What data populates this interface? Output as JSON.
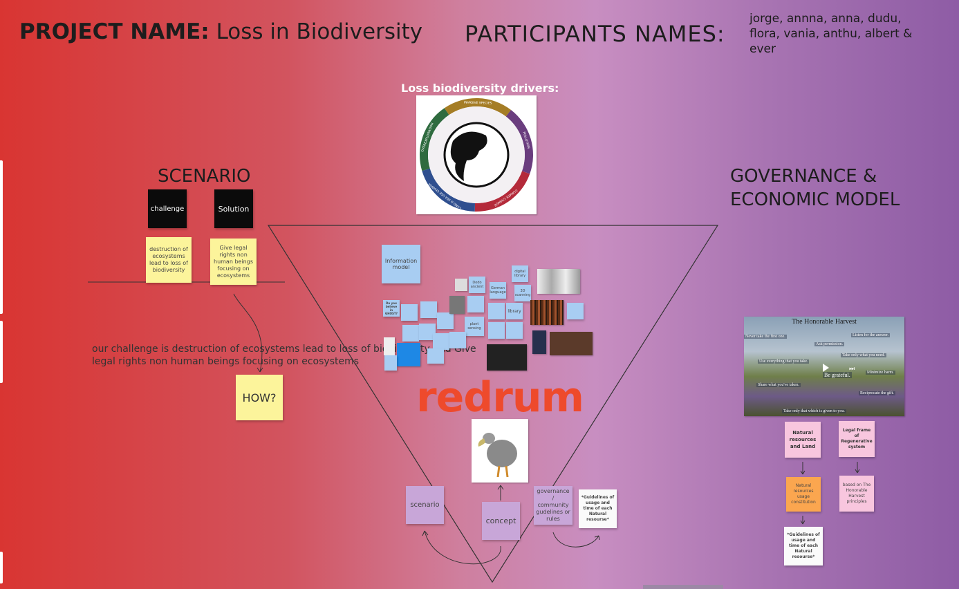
{
  "header": {
    "project_label": "PROJECT NAME:",
    "project_name": "Loss in Biodiversity",
    "participants_label": "PARTICIPANTS NAMES:",
    "participants": "jorge, annna, anna, dudu, flora, vania, anthu, albert & ever"
  },
  "drivers": {
    "title": "Loss biodiversity drivers:",
    "wheel_labels": [
      "INVASIVE SPECIES",
      "POLLUTION",
      "CLIMATE CHANGE",
      "LAND & SEA USE CHANGE",
      "OVEREXPLOITATION"
    ],
    "wheel_colors": [
      "#a57d25",
      "#6a3d7e",
      "#b42a3a",
      "#2f4f8f",
      "#2f6b3f"
    ]
  },
  "scenario": {
    "title": "SCENARIO",
    "challenge": "challenge",
    "solution": "Solution",
    "challenge_note": "destruction of ecosystems lead to loss of biodiversity",
    "solution_note": "Give legal rights non human beings focusing on ecosystems",
    "statement": "our challenge is destruction of ecosystems lead to loss of biodiversity and Give legal rights non human beings focusing on ecosystems",
    "how": "HOW?"
  },
  "center": {
    "info_model": "Information model",
    "notes": {
      "dodo": "Dodo ancient",
      "german": "German language",
      "digital": "digital library",
      "scanning": "3D scanning",
      "library": "library",
      "plant": "plant sensing",
      "believe": "Do you believe in GHOST?"
    },
    "logo": "redrum",
    "scenario": "scenario",
    "concept": "concept",
    "governance": "governance / community gudelines or rules",
    "guidelines": "*Guidelines of usage and time of each Natural resourse*"
  },
  "governance": {
    "title_line1": "GOVERNANCE &",
    "title_line2": "ECONOMIC MODEL",
    "harvest": {
      "title": "The Honorable Harvest",
      "lines": [
        "Never take the first one.",
        "Listen for the answer.",
        "Ask permission.",
        "Take only what you need.",
        "Use everything that you take.",
        "Minimize harm.",
        "Be grateful.",
        "Share what you've taken.",
        "Reciprocate the gift.",
        "Take only that which is given to you."
      ]
    },
    "natural_resources": "Natural resources and Land",
    "legal_frame": "Legal frame of Regenerative system",
    "constitution": "Natural resources usage constitution",
    "based_on": "based on The Honorable Harvest principles",
    "guidelines": "*Guidelines of usage and time of each Natural resourse*"
  }
}
